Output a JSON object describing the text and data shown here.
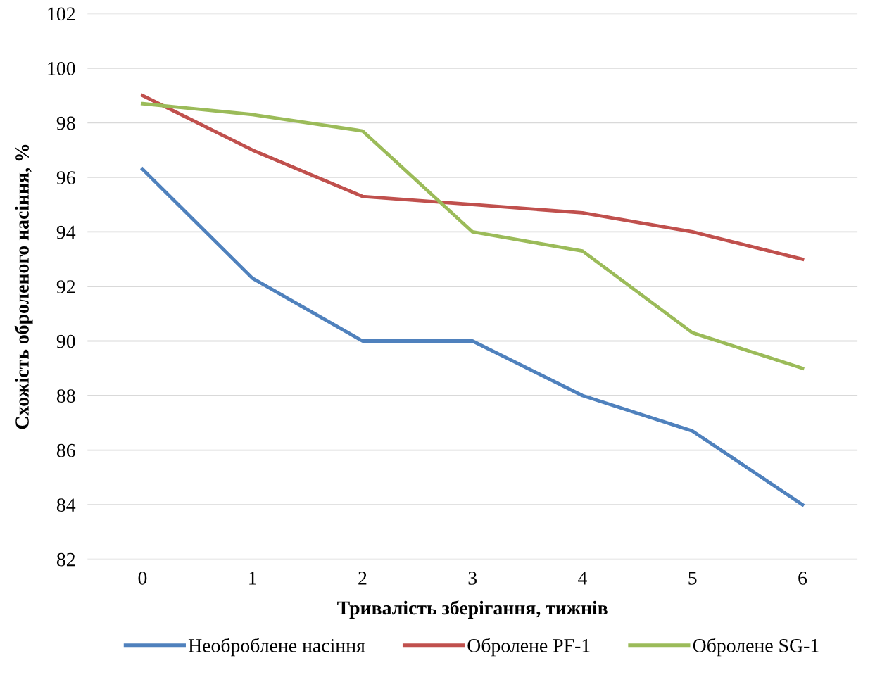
{
  "chart_data": {
    "type": "line",
    "xlabel": "Тривалість зберігання, тижнів",
    "ylabel": "Схожість оброленого насіння, %",
    "categories": [
      "0",
      "1",
      "2",
      "3",
      "4",
      "5",
      "6"
    ],
    "series": [
      {
        "name": "Необроблене насіння",
        "color": "#4f81bd",
        "values": [
          96.3,
          92.3,
          90.0,
          90.0,
          88.0,
          86.7,
          84.0
        ]
      },
      {
        "name": "Оброленe PF-1",
        "color": "#c0504d",
        "values": [
          99.0,
          97.0,
          95.3,
          95.0,
          94.7,
          94.0,
          93.0
        ]
      },
      {
        "name": "Оброленe SG-1",
        "color": "#9bbb59",
        "values": [
          98.7,
          98.3,
          97.7,
          94.0,
          93.3,
          90.3,
          89.0
        ]
      }
    ],
    "ylim": [
      82,
      102
    ],
    "yticks": [
      82,
      84,
      86,
      88,
      90,
      92,
      94,
      96,
      98,
      100,
      102
    ],
    "grid": "y",
    "legend": "bottom",
    "marker": "none",
    "line_style": "solid"
  }
}
